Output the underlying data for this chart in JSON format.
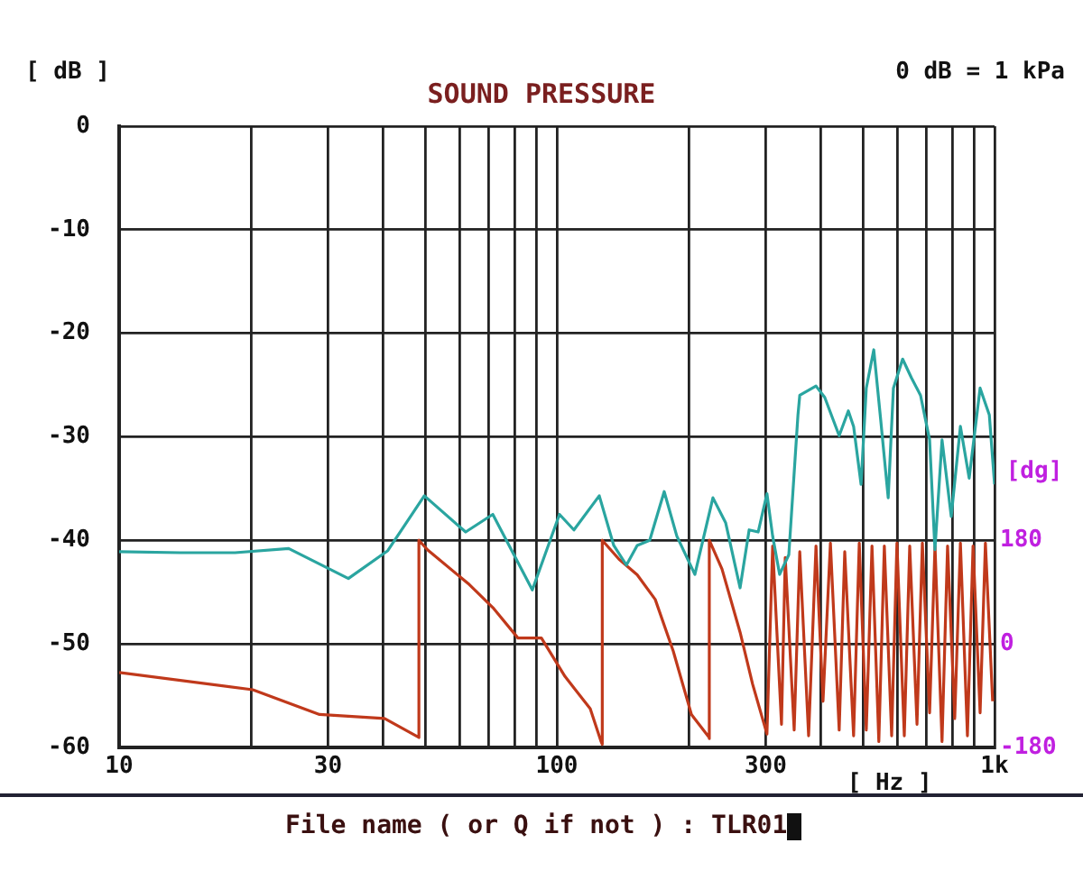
{
  "chart_data": {
    "type": "line",
    "title": "SOUND PRESSURE",
    "xlabel": "[ Hz ]",
    "ylabel": "[ dB ]",
    "y2label": "[dg]",
    "annotations": [
      "0 dB = 1 kPa",
      "File name ( or Q if not ) : TLR01"
    ],
    "log": "x",
    "grid": true,
    "xlim": [
      10,
      1000
    ],
    "xticks": [
      10,
      {
        "value": 20,
        "label": null
      },
      30,
      {
        "value": 40,
        "label": null
      },
      {
        "value": 50,
        "label": null
      },
      {
        "value": 60,
        "label": null
      },
      {
        "value": 70,
        "label": null
      },
      {
        "value": 80,
        "label": null
      },
      {
        "value": 90,
        "label": null
      },
      100,
      {
        "value": 200,
        "label": null
      },
      300,
      {
        "value": 400,
        "label": null
      },
      {
        "value": 500,
        "label": null
      },
      {
        "value": 600,
        "label": null
      },
      {
        "value": 700,
        "label": null
      },
      {
        "value": 800,
        "label": null
      },
      {
        "value": 900,
        "label": null
      },
      {
        "value": 1000,
        "label": "1k"
      }
    ],
    "ylim": [
      -60,
      0
    ],
    "yticks": [
      -60,
      -50,
      -40,
      -30,
      -20,
      -10,
      0
    ],
    "y2lim": [
      -180,
      900
    ],
    "y2ticks": [
      -180,
      0,
      180
    ],
    "series": [
      {
        "color": "#2aa5a0",
        "x": [
          10,
          13.8,
          18.4,
          24.4,
          33.4,
          41.1,
          49.8,
          61.9,
          71.4,
          87.9,
          101.4,
          109.4,
          125,
          134.9,
          144.2,
          152.6,
          163,
          175.9,
          188,
          206.7,
          227.3,
          243,
          262.2,
          275,
          288.4,
          302,
          311.2,
          322.8,
          338.8,
          355.5,
          358.9,
          390.9,
          409.3,
          441.6,
          463.4,
          476.4,
          495.5,
          509.3,
          529.7,
          549.5,
          571.5,
          587.5,
          616.6,
          645.7,
          677.5,
          710.6,
          730.8,
          758.6,
          796.2,
          835.6,
          875,
          926.8,
          972.9,
          1000
        ],
        "values": [
          -41.1,
          -41.2,
          -41.2,
          -40.8,
          -43.7,
          -41,
          -35.7,
          -39.2,
          -37.5,
          -44.8,
          -37.5,
          -39,
          -35.7,
          -40.5,
          -42.4,
          -40.5,
          -40,
          -35.3,
          -39.6,
          -43.3,
          -35.9,
          -38.3,
          -44.6,
          -39,
          -39.2,
          -35.5,
          -39.6,
          -43.3,
          -41.4,
          -27.9,
          -26,
          -25.1,
          -26.2,
          -29.9,
          -27.5,
          -29,
          -34.6,
          -25.3,
          -21.6,
          -28.4,
          -35.9,
          -25.3,
          -22.5,
          -24.3,
          -26,
          -30.3,
          -40.9,
          -30.3,
          -37.7,
          -29,
          -34,
          -25.3,
          -27.9,
          -34.6
        ]
      },
      {
        "color": "#c0391b",
        "axis": "y2",
        "x": [
          10,
          20.2,
          28.7,
          40.4,
          48.4,
          48.4,
          50.7,
          63.1,
          71.4,
          81.5,
          92.2,
          104.4,
          119.2,
          126.2,
          127,
          127,
          138.7,
          152.6,
          167.8,
          184.5,
          203,
          222.9,
          223,
          223,
          238.4,
          262.2,
          280,
          302,
          311.2,
          326,
          332.5,
          348.5,
          358.9,
          376,
          390.9,
          405.6,
          421.7,
          441.6,
          454.7,
          476.4,
          490.8,
          509.3,
          524.8,
          544,
          560,
          582,
          598.4,
          622,
          640,
          665,
          684,
          710.6,
          731,
          758.6,
          781,
          811,
          835.6,
          867,
          893,
          926.8,
          953,
          990
        ],
        "values": [
          -50,
          -80,
          -123,
          -130,
          -163,
          180,
          163,
          103,
          63,
          10,
          10,
          -57,
          -113,
          -170,
          -175,
          180,
          147,
          120,
          77,
          -13,
          -123,
          -163,
          -165,
          180,
          130,
          20,
          -70,
          -157,
          170,
          -140,
          150,
          -150,
          160,
          -160,
          170,
          -100,
          175,
          -150,
          160,
          -160,
          175,
          -150,
          170,
          -170,
          170,
          -160,
          175,
          -160,
          170,
          -140,
          175,
          -120,
          170,
          -170,
          170,
          -130,
          175,
          -160,
          170,
          -120,
          175,
          -100
        ]
      }
    ]
  }
}
